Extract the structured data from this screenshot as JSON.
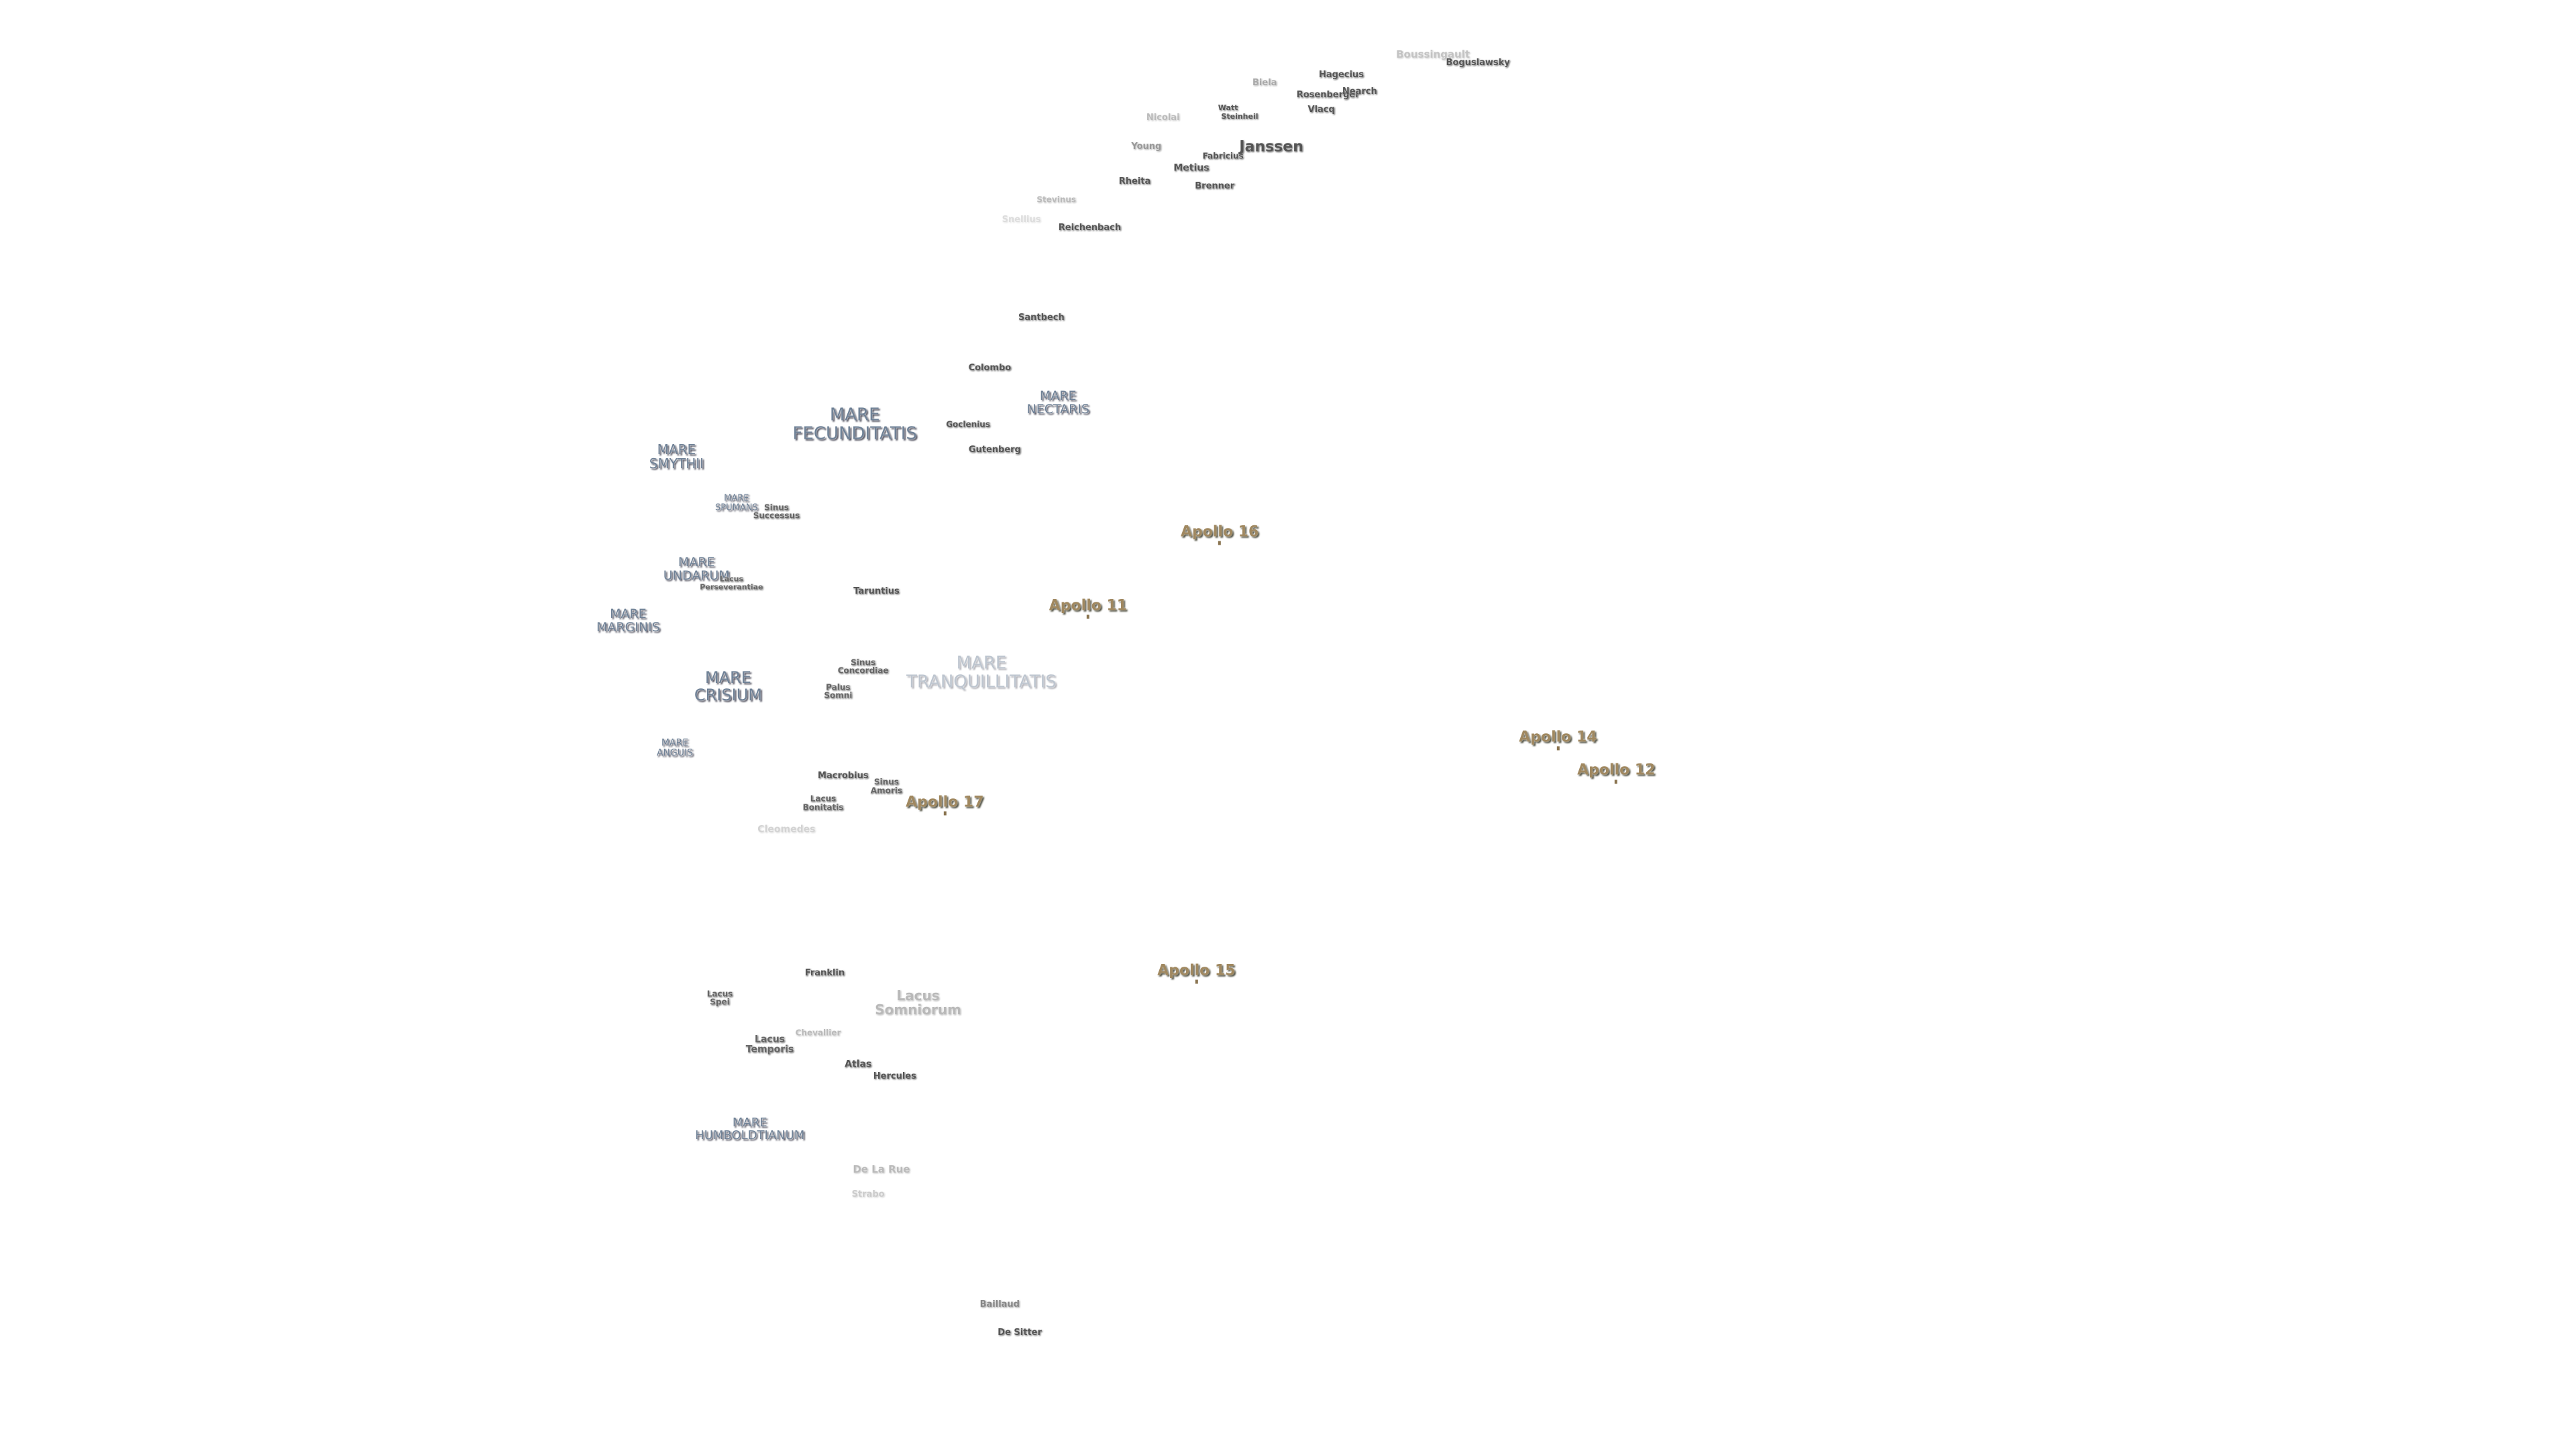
{
  "maria": [
    {
      "lines": [
        "MARE",
        "FECUNDITATIS"
      ]
    },
    {
      "lines": [
        "MARE",
        "NECTARIS"
      ]
    },
    {
      "lines": [
        "MARE",
        "SMYTHII"
      ]
    },
    {
      "lines": [
        "MARE",
        "SPUMANS"
      ]
    },
    {
      "lines": [
        "MARE",
        "UNDARUM"
      ]
    },
    {
      "lines": [
        "MARE",
        "MARGINIS"
      ]
    },
    {
      "lines": [
        "MARE",
        "CRISIUM"
      ]
    },
    {
      "lines": [
        "MARE",
        "TRANQUILLITATIS"
      ]
    },
    {
      "lines": [
        "MARE",
        "ANGUIS"
      ]
    },
    {
      "lines": [
        "MARE",
        "HUMBOLDTIANUM"
      ]
    }
  ],
  "lakes": [
    {
      "lines": [
        "Sinus",
        "Successus"
      ]
    },
    {
      "lines": [
        "Sinus",
        "Concordiae"
      ]
    },
    {
      "lines": [
        "Palus",
        "Somni"
      ]
    },
    {
      "lines": [
        "Lacus",
        "Perseverantiae"
      ]
    },
    {
      "lines": [
        "Sinus",
        "Amoris"
      ]
    },
    {
      "lines": [
        "Lacus",
        "Bonitatis"
      ]
    },
    {
      "lines": [
        "Lacus",
        "Spei"
      ]
    },
    {
      "lines": [
        "Lacus",
        "Temporis"
      ]
    },
    {
      "lines": [
        "Lacus",
        "Somniorum"
      ]
    }
  ],
  "craters": [
    "Boussingault",
    "Boguslawsky",
    "Hagecius",
    "Biela",
    "Rosenberger",
    "Nearch",
    "Vlacq",
    "Watt",
    "Steinheil",
    "Nicolai",
    "Young",
    "Fabricius",
    "Janssen",
    "Metius",
    "Rheita",
    "Brenner",
    "Stevinus",
    "Snellius",
    "Reichenbach",
    "Santbech",
    "Colombo",
    "Goclenius",
    "Gutenberg",
    "Taruntius",
    "Macrobius",
    "Cleomedes",
    "Franklin",
    "Chevallier",
    "Atlas",
    "Hercules",
    "De La Rue",
    "Strabo",
    "Baillaud",
    "De Sitter"
  ],
  "apollo_sites": [
    "Apollo 16",
    "Apollo 11",
    "Apollo 14",
    "Apollo 12",
    "Apollo 17",
    "Apollo 15"
  ]
}
